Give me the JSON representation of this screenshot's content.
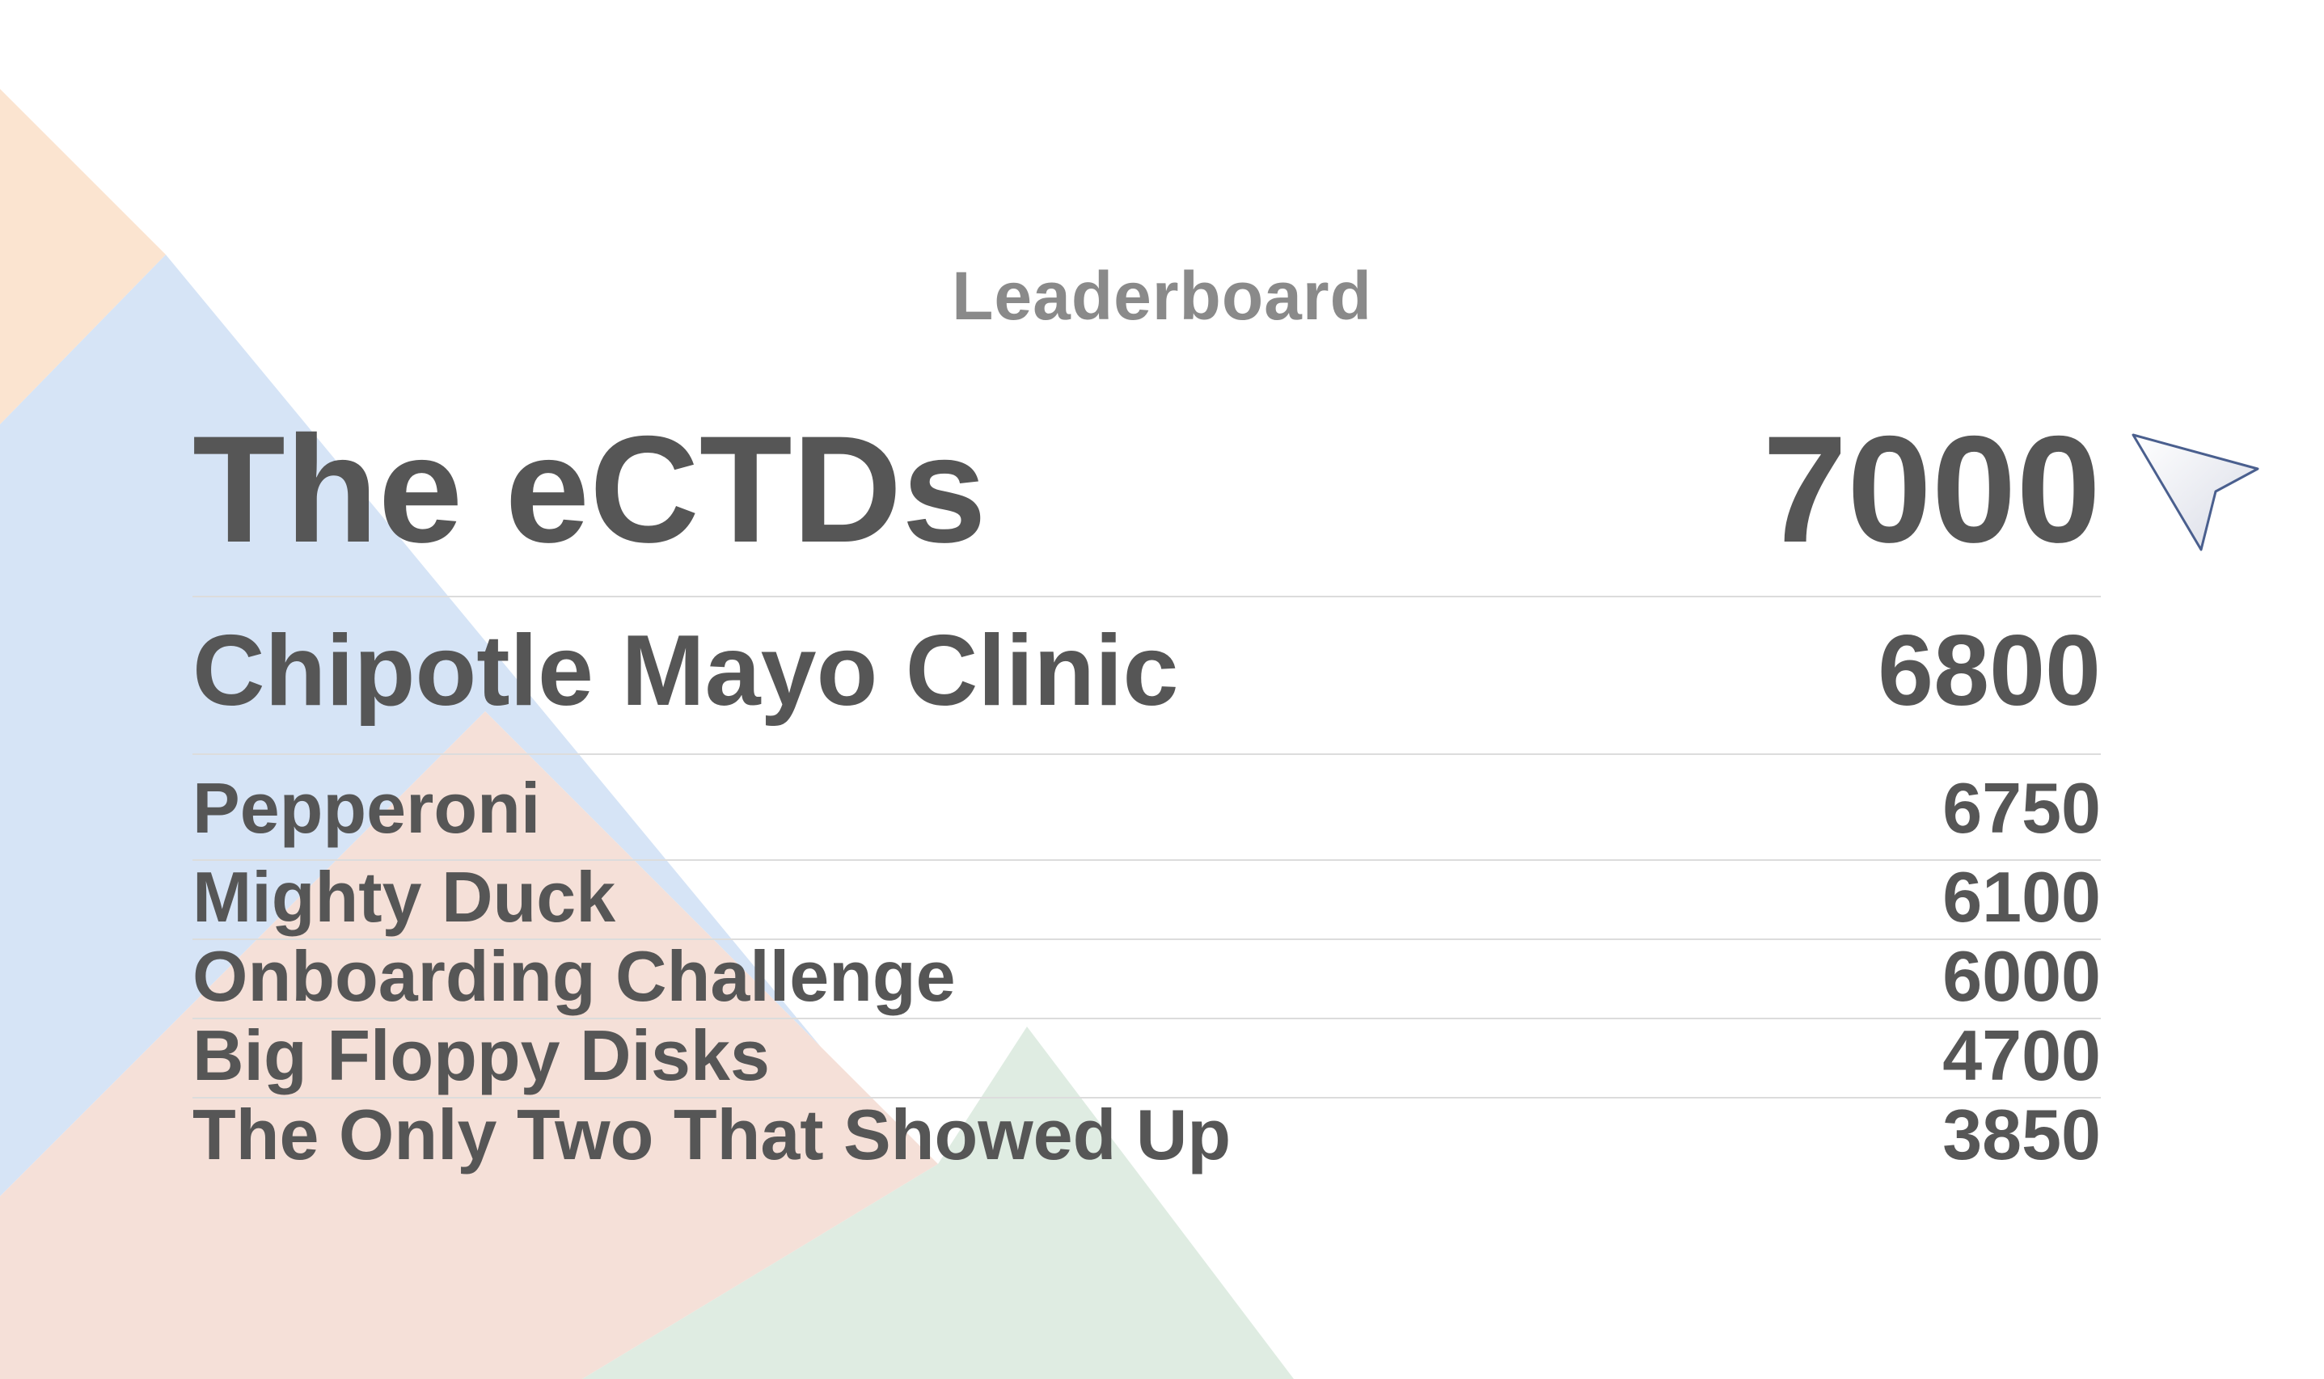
{
  "title": "Leaderboard",
  "colors": {
    "peach": "#fbe4d0",
    "blue": "#d6e4f6",
    "salmon": "#f5e0d8",
    "green": "#dfece2",
    "text": "#565656",
    "title_text": "#8a8a8a",
    "divider": "#dcdcdc"
  },
  "leaderboard": [
    {
      "name": "The eCTDs",
      "score": "7000"
    },
    {
      "name": "Chipotle Mayo Clinic",
      "score": "6800"
    },
    {
      "name": "Pepperoni",
      "score": "6750"
    },
    {
      "name": "Mighty Duck",
      "score": "6100"
    },
    {
      "name": "Onboarding Challenge",
      "score": "6000"
    },
    {
      "name": "Big Floppy Disks",
      "score": "4700"
    },
    {
      "name": "The Only Two That Showed Up",
      "score": "3850"
    }
  ],
  "cursor_icon": "pointer-arrow-icon"
}
